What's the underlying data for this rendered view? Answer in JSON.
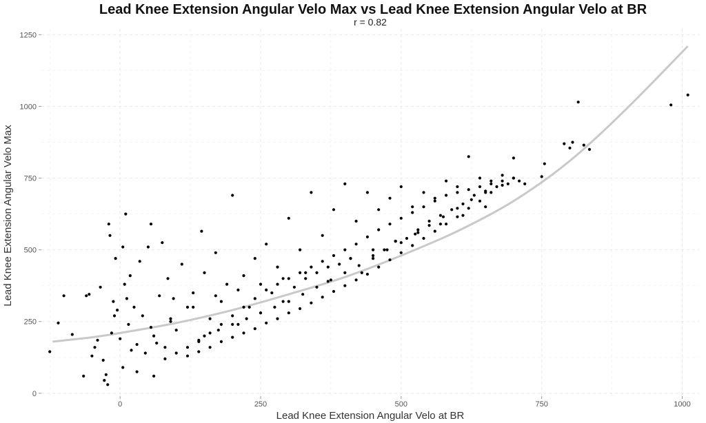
{
  "chart_data": {
    "type": "scatter",
    "title": "Lead Knee Extension Angular Velo Max vs Lead Knee Extension Angular Velo at BR",
    "subtitle": "r =  0.82",
    "xlabel": "Lead Knee Extension Angular Velo at BR",
    "ylabel": "Lead Knee Extension Angular Velo Max",
    "xlim": [
      -140,
      1030
    ],
    "ylim": [
      -10,
      1270
    ],
    "x_ticks": [
      0,
      250,
      500,
      750,
      1000
    ],
    "x_tick_labels": [
      "0",
      "250",
      "500",
      "750",
      "1000"
    ],
    "y_ticks": [
      0,
      250,
      500,
      750,
      1000,
      1250
    ],
    "y_tick_labels": [
      "0",
      "250",
      "500",
      "750",
      "1000",
      "1250"
    ],
    "grid": true,
    "legend": "none",
    "point_color": "#000000",
    "fit_color": "#c9c9c9",
    "trend_curve": {
      "x": [
        -120,
        -50,
        0,
        100,
        200,
        300,
        400,
        500,
        600,
        700,
        800,
        900,
        1010
      ],
      "y": [
        180,
        195,
        210,
        245,
        290,
        345,
        405,
        480,
        565,
        670,
        810,
        990,
        1210
      ]
    },
    "series": [
      {
        "x": [
          -125,
          -110,
          -100,
          -85,
          -65,
          -60,
          -55,
          -50,
          -45,
          -40,
          -35,
          -30,
          -28,
          -25,
          -22,
          -20,
          -18,
          -15,
          -12,
          -10,
          -8,
          -5,
          0,
          5,
          5,
          8,
          10,
          12,
          15,
          18,
          20,
          25,
          30,
          35,
          40,
          45,
          50,
          55,
          55,
          60,
          65,
          70,
          75,
          80,
          85,
          90,
          95,
          100,
          110,
          120,
          130,
          140,
          145,
          150,
          160,
          170,
          180,
          190,
          200,
          210,
          220,
          230,
          240,
          250,
          260,
          270,
          280,
          290,
          300,
          310,
          320,
          330,
          340,
          350,
          360,
          370,
          380,
          390,
          400,
          410,
          420,
          430,
          440,
          450,
          460,
          470,
          480,
          490,
          500,
          510,
          520,
          530,
          540,
          550,
          560,
          570,
          580,
          590,
          600,
          610,
          620,
          630,
          640,
          650,
          660,
          670,
          680,
          690,
          700,
          710,
          720,
          750,
          755,
          790,
          800,
          805,
          815,
          825,
          835,
          980,
          1010,
          120,
          140,
          160,
          180,
          200,
          220,
          240,
          260,
          280,
          300,
          320,
          340,
          360,
          380,
          400,
          420,
          440,
          460,
          480,
          500,
          520,
          540,
          560,
          580,
          600,
          620,
          640,
          660,
          680,
          700,
          150,
          175,
          200,
          225,
          250,
          275,
          300,
          325,
          350,
          375,
          400,
          425,
          450,
          475,
          500,
          525,
          550,
          575,
          600,
          625,
          650,
          80,
          100,
          120,
          140,
          160,
          180,
          200,
          220,
          240,
          260,
          280,
          300,
          320,
          340,
          360,
          380,
          400,
          420,
          440,
          460,
          480,
          500,
          520,
          540,
          560,
          580,
          600,
          620,
          640,
          660,
          680,
          700,
          30,
          60,
          90,
          130,
          170,
          210,
          250,
          290,
          330,
          370,
          410,
          450,
          490,
          530,
          570,
          610,
          650
        ],
        "y": [
          145,
          245,
          340,
          205,
          60,
          340,
          345,
          130,
          160,
          185,
          370,
          115,
          45,
          65,
          30,
          590,
          550,
          210,
          320,
          270,
          470,
          290,
          190,
          510,
          90,
          380,
          625,
          330,
          240,
          410,
          150,
          300,
          75,
          460,
          270,
          140,
          510,
          590,
          230,
          60,
          175,
          340,
          525,
          160,
          400,
          260,
          330,
          220,
          450,
          300,
          350,
          180,
          565,
          420,
          260,
          490,
          320,
          380,
          690,
          240,
          410,
          300,
          470,
          280,
          520,
          350,
          440,
          320,
          610,
          370,
          500,
          400,
          700,
          420,
          550,
          390,
          640,
          450,
          730,
          470,
          600,
          420,
          700,
          480,
          640,
          500,
          680,
          530,
          720,
          540,
          650,
          570,
          700,
          600,
          680,
          620,
          740,
          640,
          720,
          660,
          825,
          690,
          750,
          700,
          740,
          720,
          760,
          730,
          820,
          740,
          730,
          755,
          800,
          870,
          855,
          875,
          1015,
          865,
          850,
          1005,
          1040,
          130,
          145,
          160,
          180,
          195,
          210,
          225,
          245,
          260,
          280,
          295,
          315,
          335,
          355,
          375,
          395,
          415,
          440,
          465,
          490,
          515,
          540,
          565,
          590,
          615,
          645,
          670,
          700,
          725,
          750,
          200,
          220,
          240,
          260,
          280,
          300,
          320,
          345,
          370,
          395,
          420,
          445,
          470,
          500,
          525,
          555,
          585,
          615,
          645,
          675,
          705,
          120,
          140,
          160,
          185,
          210,
          240,
          270,
          300,
          330,
          360,
          380,
          400,
          420,
          440,
          460,
          480,
          500,
          520,
          545,
          570,
          590,
          610,
          630,
          650,
          670,
          690,
          700,
          710,
          720,
          730,
          740,
          750,
          170,
          200,
          250,
          300,
          340,
          360,
          380,
          400,
          420,
          440,
          470,
          500,
          530,
          560,
          590,
          620,
          650
        ]
      }
    ]
  }
}
